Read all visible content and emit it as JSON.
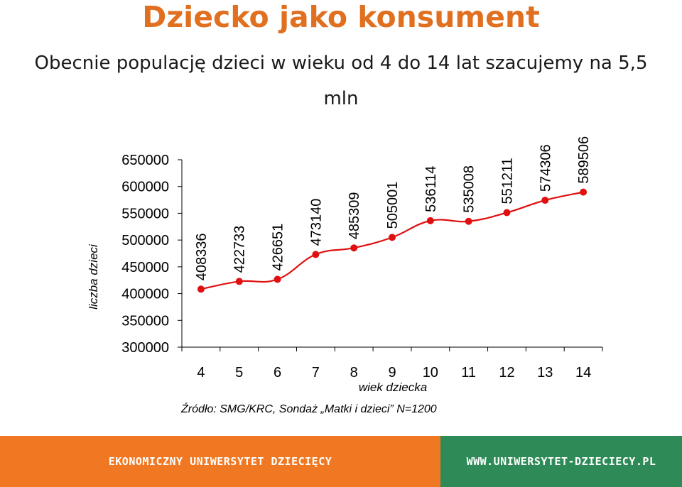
{
  "page": {
    "title": "Dziecko jako konsument",
    "subtitle": "Obecnie populację dzieci w wieku od 4 do 14 lat szacujemy na 5,5 mln"
  },
  "chart_data": {
    "type": "line",
    "xlabel": "wiek dziecka",
    "ylabel": "liczba dzieci",
    "x": [
      4,
      5,
      6,
      7,
      8,
      9,
      10,
      11,
      12,
      13,
      14
    ],
    "values": [
      408336,
      422733,
      426651,
      473140,
      485309,
      505001,
      536114,
      535008,
      551211,
      574306,
      589506
    ],
    "ylim": [
      300000,
      650000
    ],
    "yticks": [
      650000,
      600000,
      550000,
      500000,
      450000,
      400000,
      350000,
      300000
    ],
    "line_color": "#e01010",
    "grid": false,
    "source": "Źródło: SMG/KRC,  Sondaż „Matki i dzieci” N=1200"
  },
  "footer": {
    "left_text": "EKONOMICZNY UNIWERSYTET DZIECIĘCY",
    "right_text": "WWW.UNIWERSYTET-DZIECIECY.PL",
    "left_color": "#f07822",
    "right_color": "#2e8b57"
  }
}
